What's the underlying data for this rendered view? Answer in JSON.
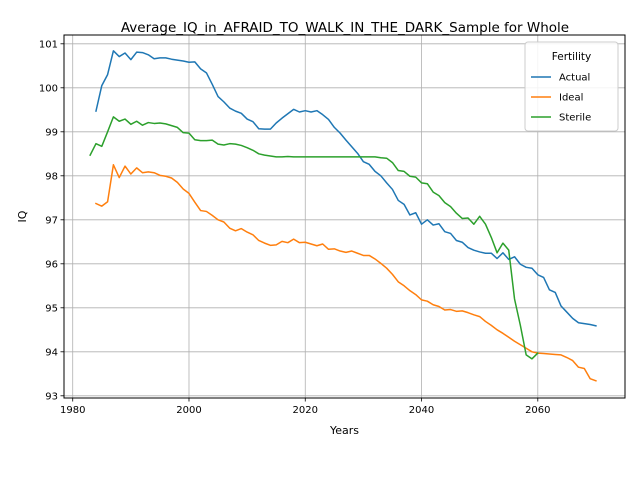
{
  "chart_data": {
    "type": "line",
    "title": "Average_IQ_in_AFRAID_TO_WALK_IN_THE_DARK_Sample for Whole",
    "xlabel": "Years",
    "ylabel": "IQ",
    "xlim": [
      1978.5,
      2075
    ],
    "ylim": [
      92.95,
      101.2
    ],
    "xticks": [
      1980,
      2000,
      2020,
      2040,
      2060
    ],
    "yticks": [
      93,
      94,
      95,
      96,
      97,
      98,
      99,
      100,
      101
    ],
    "grid": true,
    "legend": {
      "title": "Fertility",
      "placement": "top-right"
    },
    "series": [
      {
        "name": "Actual",
        "color": "#1f77b4",
        "points": [
          [
            1984,
            99.47
          ],
          [
            1985,
            100.05
          ],
          [
            1986,
            100.3
          ],
          [
            1987,
            100.84
          ],
          [
            1988,
            100.71
          ],
          [
            1989,
            100.79
          ],
          [
            1990,
            100.64
          ],
          [
            1991,
            100.81
          ],
          [
            1992,
            100.8
          ],
          [
            1993,
            100.75
          ],
          [
            1994,
            100.66
          ],
          [
            1995,
            100.68
          ],
          [
            1996,
            100.68
          ],
          [
            1997,
            100.65
          ],
          [
            1998,
            100.63
          ],
          [
            1999,
            100.61
          ],
          [
            2000,
            100.58
          ],
          [
            2001,
            100.59
          ],
          [
            2002,
            100.43
          ],
          [
            2003,
            100.34
          ],
          [
            2004,
            100.08
          ],
          [
            2005,
            99.8
          ],
          [
            2006,
            99.68
          ],
          [
            2007,
            99.54
          ],
          [
            2008,
            99.47
          ],
          [
            2009,
            99.42
          ],
          [
            2010,
            99.29
          ],
          [
            2011,
            99.23
          ],
          [
            2012,
            99.07
          ],
          [
            2013,
            99.06
          ],
          [
            2014,
            99.06
          ],
          [
            2015,
            99.2
          ],
          [
            2016,
            99.31
          ],
          [
            2017,
            99.41
          ],
          [
            2018,
            99.51
          ],
          [
            2019,
            99.45
          ],
          [
            2020,
            99.48
          ],
          [
            2021,
            99.45
          ],
          [
            2022,
            99.48
          ],
          [
            2023,
            99.39
          ],
          [
            2024,
            99.28
          ],
          [
            2025,
            99.1
          ],
          [
            2026,
            98.97
          ],
          [
            2027,
            98.81
          ],
          [
            2028,
            98.66
          ],
          [
            2029,
            98.51
          ],
          [
            2030,
            98.32
          ],
          [
            2031,
            98.26
          ],
          [
            2032,
            98.1
          ],
          [
            2033,
            98.0
          ],
          [
            2034,
            97.84
          ],
          [
            2035,
            97.69
          ],
          [
            2036,
            97.44
          ],
          [
            2037,
            97.35
          ],
          [
            2038,
            97.11
          ],
          [
            2039,
            97.16
          ],
          [
            2040,
            96.9
          ],
          [
            2041,
            97.0
          ],
          [
            2042,
            96.88
          ],
          [
            2043,
            96.91
          ],
          [
            2044,
            96.73
          ],
          [
            2045,
            96.69
          ],
          [
            2046,
            96.53
          ],
          [
            2047,
            96.49
          ],
          [
            2048,
            96.37
          ],
          [
            2049,
            96.31
          ],
          [
            2050,
            96.27
          ],
          [
            2051,
            96.24
          ],
          [
            2052,
            96.24
          ],
          [
            2053,
            96.12
          ],
          [
            2054,
            96.25
          ],
          [
            2055,
            96.1
          ],
          [
            2056,
            96.16
          ],
          [
            2057,
            95.99
          ],
          [
            2058,
            95.92
          ],
          [
            2059,
            95.9
          ],
          [
            2060,
            95.75
          ],
          [
            2061,
            95.69
          ],
          [
            2062,
            95.41
          ],
          [
            2063,
            95.35
          ],
          [
            2064,
            95.04
          ],
          [
            2065,
            94.9
          ],
          [
            2066,
            94.76
          ],
          [
            2067,
            94.66
          ],
          [
            2068,
            94.64
          ],
          [
            2069,
            94.62
          ],
          [
            2070,
            94.59
          ]
        ]
      },
      {
        "name": "Ideal",
        "color": "#ff7f0e",
        "points": [
          [
            1984,
            97.37
          ],
          [
            1985,
            97.31
          ],
          [
            1986,
            97.41
          ],
          [
            1987,
            98.25
          ],
          [
            1988,
            97.96
          ],
          [
            1989,
            98.22
          ],
          [
            1990,
            98.04
          ],
          [
            1991,
            98.18
          ],
          [
            1992,
            98.07
          ],
          [
            1993,
            98.09
          ],
          [
            1994,
            98.07
          ],
          [
            1995,
            98.01
          ],
          [
            1996,
            97.99
          ],
          [
            1997,
            97.95
          ],
          [
            1998,
            97.85
          ],
          [
            1999,
            97.7
          ],
          [
            2000,
            97.6
          ],
          [
            2001,
            97.4
          ],
          [
            2002,
            97.21
          ],
          [
            2003,
            97.19
          ],
          [
            2004,
            97.1
          ],
          [
            2005,
            97.0
          ],
          [
            2006,
            96.95
          ],
          [
            2007,
            96.81
          ],
          [
            2008,
            96.75
          ],
          [
            2009,
            96.8
          ],
          [
            2010,
            96.72
          ],
          [
            2011,
            96.66
          ],
          [
            2012,
            96.53
          ],
          [
            2013,
            96.47
          ],
          [
            2014,
            96.42
          ],
          [
            2015,
            96.43
          ],
          [
            2016,
            96.51
          ],
          [
            2017,
            96.48
          ],
          [
            2018,
            96.56
          ],
          [
            2019,
            96.48
          ],
          [
            2020,
            96.49
          ],
          [
            2021,
            96.45
          ],
          [
            2022,
            96.41
          ],
          [
            2023,
            96.45
          ],
          [
            2024,
            96.33
          ],
          [
            2025,
            96.34
          ],
          [
            2026,
            96.29
          ],
          [
            2027,
            96.26
          ],
          [
            2028,
            96.29
          ],
          [
            2029,
            96.24
          ],
          [
            2030,
            96.19
          ],
          [
            2031,
            96.19
          ],
          [
            2032,
            96.11
          ],
          [
            2033,
            96.01
          ],
          [
            2034,
            95.9
          ],
          [
            2035,
            95.76
          ],
          [
            2036,
            95.59
          ],
          [
            2037,
            95.5
          ],
          [
            2038,
            95.39
          ],
          [
            2039,
            95.3
          ],
          [
            2040,
            95.18
          ],
          [
            2041,
            95.15
          ],
          [
            2042,
            95.07
          ],
          [
            2043,
            95.03
          ],
          [
            2044,
            94.95
          ],
          [
            2045,
            94.96
          ],
          [
            2046,
            94.92
          ],
          [
            2047,
            94.93
          ],
          [
            2048,
            94.89
          ],
          [
            2049,
            94.84
          ],
          [
            2050,
            94.8
          ],
          [
            2051,
            94.69
          ],
          [
            2052,
            94.6
          ],
          [
            2053,
            94.5
          ],
          [
            2054,
            94.42
          ],
          [
            2055,
            94.33
          ],
          [
            2056,
            94.24
          ],
          [
            2057,
            94.16
          ],
          [
            2058,
            94.08
          ],
          [
            2059,
            94.0
          ],
          [
            2060,
            93.97
          ],
          [
            2061,
            93.96
          ],
          [
            2062,
            93.95
          ],
          [
            2063,
            93.94
          ],
          [
            2064,
            93.93
          ],
          [
            2065,
            93.87
          ],
          [
            2066,
            93.8
          ],
          [
            2067,
            93.65
          ],
          [
            2068,
            93.62
          ],
          [
            2069,
            93.39
          ],
          [
            2070,
            93.34
          ]
        ]
      },
      {
        "name": "Sterile",
        "color": "#2ca02c",
        "points": [
          [
            1983,
            98.47
          ],
          [
            1984,
            98.73
          ],
          [
            1985,
            98.67
          ],
          [
            1986,
            99.0
          ],
          [
            1987,
            99.34
          ],
          [
            1988,
            99.24
          ],
          [
            1989,
            99.29
          ],
          [
            1990,
            99.17
          ],
          [
            1991,
            99.24
          ],
          [
            1992,
            99.15
          ],
          [
            1993,
            99.21
          ],
          [
            1994,
            99.19
          ],
          [
            1995,
            99.2
          ],
          [
            1996,
            99.18
          ],
          [
            1997,
            99.14
          ],
          [
            1998,
            99.1
          ],
          [
            1999,
            98.98
          ],
          [
            2000,
            98.97
          ],
          [
            2001,
            98.82
          ],
          [
            2002,
            98.8
          ],
          [
            2003,
            98.8
          ],
          [
            2004,
            98.81
          ],
          [
            2005,
            98.72
          ],
          [
            2006,
            98.7
          ],
          [
            2007,
            98.73
          ],
          [
            2008,
            98.72
          ],
          [
            2009,
            98.69
          ],
          [
            2010,
            98.64
          ],
          [
            2011,
            98.58
          ],
          [
            2012,
            98.5
          ],
          [
            2013,
            98.47
          ],
          [
            2014,
            98.45
          ],
          [
            2015,
            98.43
          ],
          [
            2016,
            98.43
          ],
          [
            2017,
            98.44
          ],
          [
            2018,
            98.43
          ],
          [
            2019,
            98.43
          ],
          [
            2020,
            98.43
          ],
          [
            2021,
            98.43
          ],
          [
            2022,
            98.43
          ],
          [
            2023,
            98.43
          ],
          [
            2024,
            98.43
          ],
          [
            2025,
            98.43
          ],
          [
            2026,
            98.43
          ],
          [
            2027,
            98.43
          ],
          [
            2028,
            98.43
          ],
          [
            2029,
            98.43
          ],
          [
            2030,
            98.43
          ],
          [
            2031,
            98.43
          ],
          [
            2032,
            98.43
          ],
          [
            2033,
            98.41
          ],
          [
            2034,
            98.4
          ],
          [
            2035,
            98.3
          ],
          [
            2036,
            98.12
          ],
          [
            2037,
            98.1
          ],
          [
            2038,
            97.99
          ],
          [
            2039,
            97.97
          ],
          [
            2040,
            97.84
          ],
          [
            2041,
            97.82
          ],
          [
            2042,
            97.63
          ],
          [
            2043,
            97.55
          ],
          [
            2044,
            97.39
          ],
          [
            2045,
            97.3
          ],
          [
            2046,
            97.15
          ],
          [
            2047,
            97.03
          ],
          [
            2048,
            97.04
          ],
          [
            2049,
            96.9
          ],
          [
            2050,
            97.08
          ],
          [
            2051,
            96.9
          ],
          [
            2052,
            96.6
          ],
          [
            2053,
            96.25
          ],
          [
            2054,
            96.47
          ],
          [
            2055,
            96.31
          ],
          [
            2056,
            95.2
          ],
          [
            2057,
            94.6
          ],
          [
            2058,
            93.93
          ],
          [
            2059,
            93.84
          ],
          [
            2060,
            93.97
          ]
        ]
      }
    ]
  }
}
